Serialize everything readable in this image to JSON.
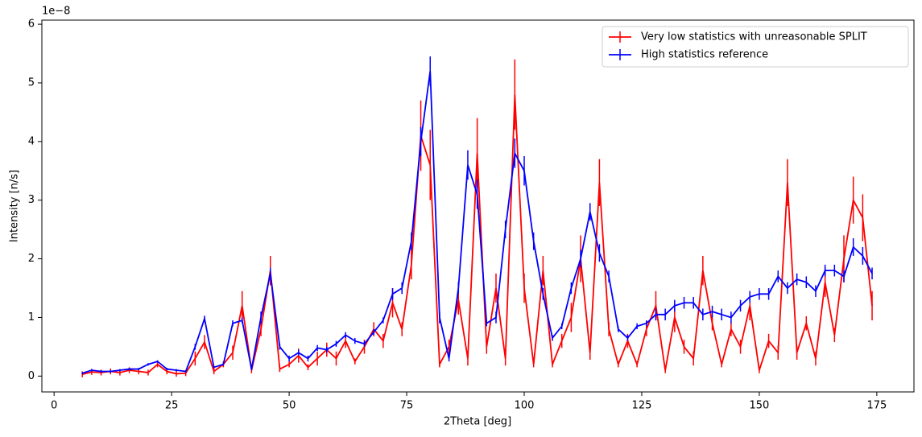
{
  "chart_data": {
    "type": "line",
    "y_offset_label": "1e−8",
    "xlabel": "2Theta [deg]",
    "ylabel": "Intensity [n/s]",
    "x": [
      6,
      8,
      10,
      12,
      14,
      16,
      18,
      20,
      22,
      24,
      26,
      28,
      30,
      32,
      34,
      36,
      38,
      40,
      42,
      44,
      46,
      48,
      50,
      52,
      54,
      56,
      58,
      60,
      62,
      64,
      66,
      68,
      70,
      72,
      74,
      76,
      78,
      80,
      82,
      84,
      86,
      88,
      90,
      92,
      94,
      96,
      98,
      100,
      102,
      104,
      106,
      108,
      110,
      112,
      114,
      116,
      118,
      120,
      122,
      124,
      126,
      128,
      130,
      132,
      134,
      136,
      138,
      140,
      142,
      144,
      146,
      148,
      150,
      152,
      154,
      156,
      158,
      160,
      162,
      164,
      166,
      168,
      170,
      172,
      174
    ],
    "series": [
      {
        "name": "Very low statistics with unreasonable SPLIT",
        "color": "#ff0000",
        "values": [
          0.03,
          0.07,
          0.06,
          0.08,
          0.06,
          0.1,
          0.08,
          0.06,
          0.2,
          0.08,
          0.04,
          0.05,
          0.3,
          0.58,
          0.08,
          0.2,
          0.4,
          1.2,
          0.1,
          0.8,
          1.8,
          0.12,
          0.2,
          0.35,
          0.15,
          0.3,
          0.45,
          0.3,
          0.6,
          0.25,
          0.5,
          0.8,
          0.6,
          1.25,
          0.8,
          1.9,
          4.1,
          3.6,
          0.2,
          0.5,
          1.3,
          0.3,
          3.8,
          0.5,
          1.5,
          0.3,
          4.8,
          1.5,
          0.2,
          1.8,
          0.2,
          0.6,
          1.0,
          2.0,
          0.4,
          3.3,
          0.8,
          0.2,
          0.6,
          0.2,
          0.8,
          1.2,
          0.1,
          1.0,
          0.5,
          0.3,
          1.8,
          0.9,
          0.2,
          0.8,
          0.5,
          1.2,
          0.1,
          0.6,
          0.4,
          3.3,
          0.4,
          0.9,
          0.3,
          1.6,
          0.7,
          2.0,
          3.0,
          2.7,
          1.2
        ],
        "errors": [
          0.05,
          0.05,
          0.05,
          0.05,
          0.05,
          0.05,
          0.05,
          0.05,
          0.05,
          0.05,
          0.05,
          0.05,
          0.12,
          0.12,
          0.05,
          0.05,
          0.12,
          0.25,
          0.05,
          0.12,
          0.25,
          0.05,
          0.05,
          0.12,
          0.05,
          0.12,
          0.12,
          0.12,
          0.12,
          0.05,
          0.12,
          0.12,
          0.12,
          0.25,
          0.12,
          0.25,
          0.6,
          0.6,
          0.05,
          0.12,
          0.25,
          0.12,
          0.6,
          0.12,
          0.25,
          0.12,
          0.6,
          0.25,
          0.05,
          0.25,
          0.05,
          0.12,
          0.25,
          0.4,
          0.12,
          0.4,
          0.12,
          0.05,
          0.12,
          0.05,
          0.12,
          0.25,
          0.05,
          0.25,
          0.12,
          0.12,
          0.25,
          0.12,
          0.05,
          0.12,
          0.12,
          0.25,
          0.05,
          0.12,
          0.12,
          0.4,
          0.12,
          0.12,
          0.12,
          0.25,
          0.12,
          0.4,
          0.4,
          0.4,
          0.25
        ]
      },
      {
        "name": "High statistics reference",
        "color": "#0000ff",
        "values": [
          0.05,
          0.1,
          0.08,
          0.08,
          0.1,
          0.12,
          0.12,
          0.2,
          0.25,
          0.12,
          0.1,
          0.08,
          0.5,
          0.98,
          0.15,
          0.2,
          0.9,
          0.95,
          0.12,
          1.0,
          1.75,
          0.5,
          0.3,
          0.4,
          0.3,
          0.48,
          0.45,
          0.55,
          0.7,
          0.6,
          0.55,
          0.75,
          0.95,
          1.4,
          1.5,
          2.3,
          4.0,
          5.2,
          1.0,
          0.3,
          1.5,
          3.6,
          3.1,
          0.9,
          1.0,
          2.5,
          3.8,
          3.5,
          2.3,
          1.4,
          0.65,
          0.85,
          1.5,
          2.0,
          2.8,
          2.1,
          1.7,
          0.8,
          0.65,
          0.85,
          0.9,
          1.05,
          1.05,
          1.2,
          1.25,
          1.25,
          1.05,
          1.1,
          1.05,
          1.0,
          1.2,
          1.35,
          1.4,
          1.4,
          1.7,
          1.5,
          1.65,
          1.6,
          1.45,
          1.8,
          1.8,
          1.7,
          2.2,
          2.05,
          1.75
        ],
        "errors": [
          0.02,
          0.02,
          0.02,
          0.02,
          0.02,
          0.02,
          0.02,
          0.02,
          0.02,
          0.02,
          0.02,
          0.02,
          0.05,
          0.05,
          0.02,
          0.02,
          0.05,
          0.05,
          0.02,
          0.1,
          0.1,
          0.05,
          0.05,
          0.05,
          0.05,
          0.05,
          0.05,
          0.05,
          0.05,
          0.05,
          0.05,
          0.05,
          0.05,
          0.1,
          0.1,
          0.15,
          0.25,
          0.25,
          0.1,
          0.05,
          0.1,
          0.25,
          0.25,
          0.05,
          0.1,
          0.15,
          0.25,
          0.25,
          0.15,
          0.1,
          0.05,
          0.05,
          0.1,
          0.15,
          0.15,
          0.15,
          0.1,
          0.05,
          0.05,
          0.05,
          0.05,
          0.1,
          0.1,
          0.1,
          0.1,
          0.1,
          0.1,
          0.1,
          0.1,
          0.1,
          0.1,
          0.1,
          0.1,
          0.1,
          0.1,
          0.1,
          0.1,
          0.1,
          0.1,
          0.1,
          0.1,
          0.1,
          0.15,
          0.15,
          0.1
        ]
      }
    ],
    "xlim": [
      -2.6,
      182.9
    ],
    "xticks": [
      0,
      25,
      50,
      75,
      100,
      125,
      150,
      175
    ],
    "ylim": [
      -0.27,
      6.07
    ],
    "yticks": [
      0,
      1,
      2,
      3,
      4,
      5,
      6
    ],
    "legend": "upper right"
  }
}
